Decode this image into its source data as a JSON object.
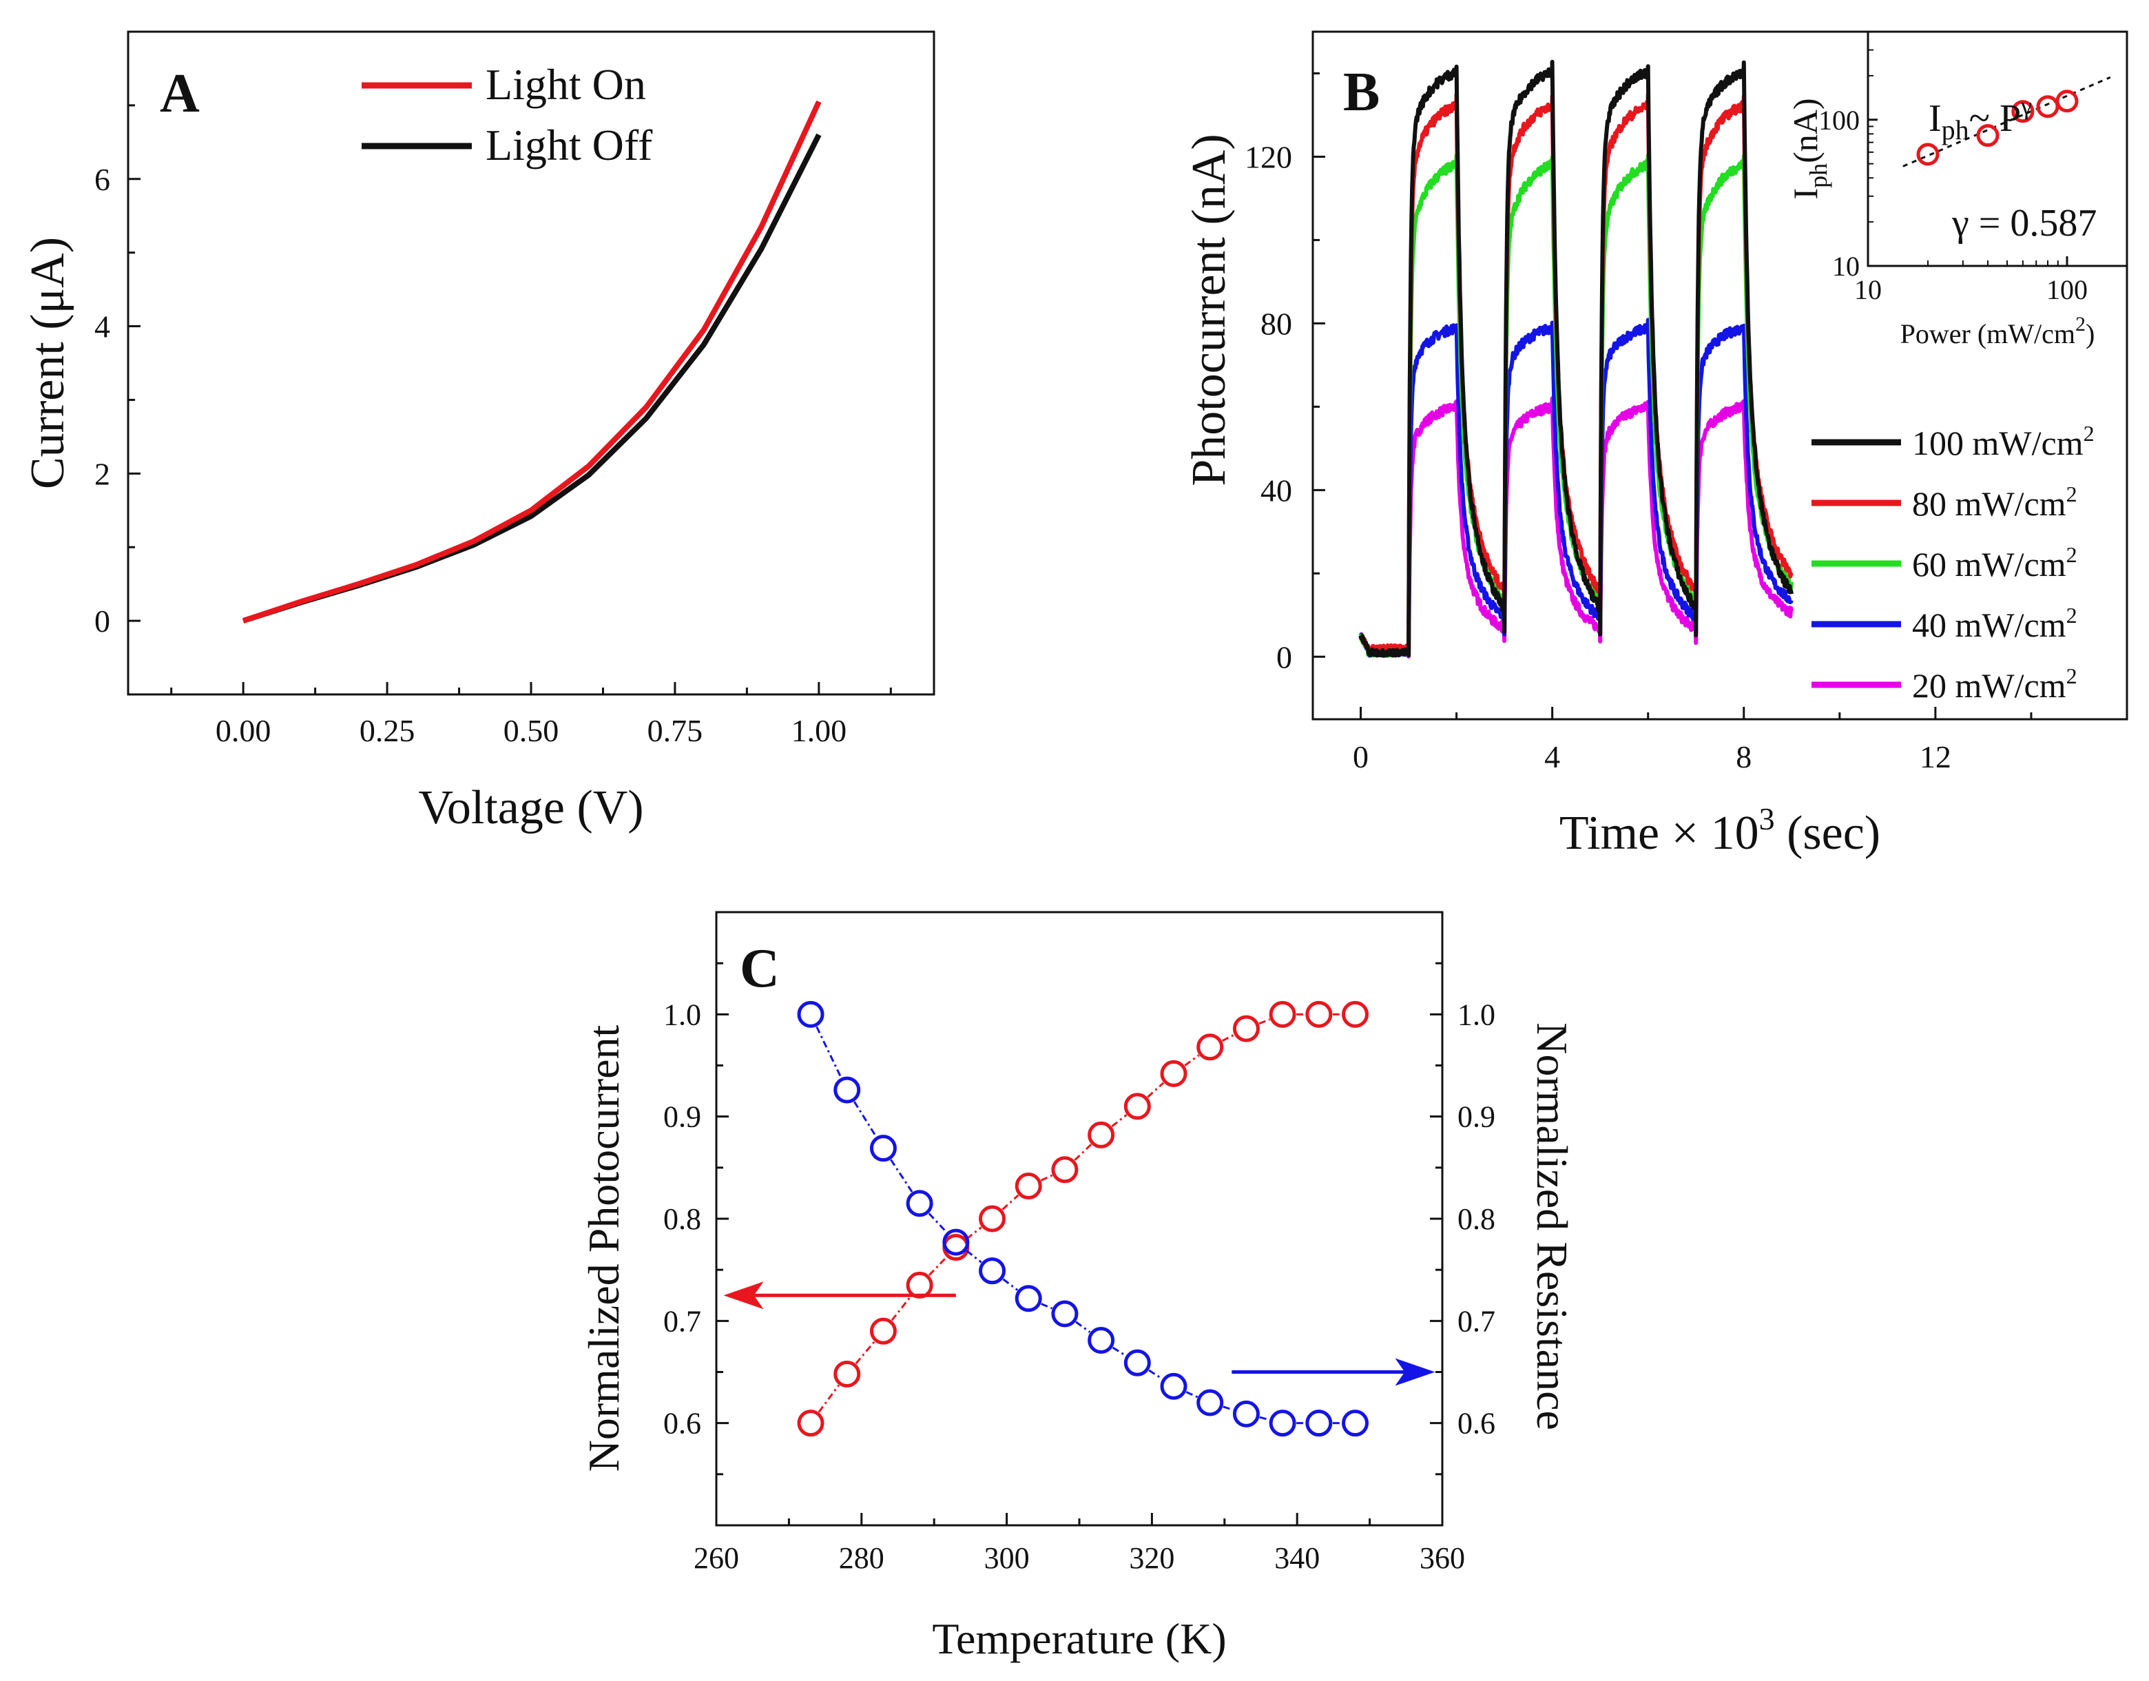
{
  "chart_data": [
    {
      "panel": "A",
      "type": "line",
      "xlabel": "Voltage (V)",
      "ylabel": "Current  (μA)",
      "xlim": [
        -0.2,
        1.2
      ],
      "ylim": [
        -1,
        8
      ],
      "xticks": [
        "0.00",
        "0.25",
        "0.50",
        "0.75",
        "1.00"
      ],
      "xtick_values": [
        0,
        0.25,
        0.5,
        0.75,
        1.0
      ],
      "yticks": [
        "0",
        "2",
        "4",
        "6"
      ],
      "ytick_values": [
        0,
        2,
        4,
        6
      ],
      "legend_position": "top-center",
      "series": [
        {
          "name": "Light On",
          "color": "#e8171e",
          "x": [
            0,
            0.1,
            0.2,
            0.3,
            0.4,
            0.5,
            0.6,
            0.7,
            0.8,
            0.9,
            1.0
          ],
          "y": [
            0,
            0.26,
            0.5,
            0.76,
            1.08,
            1.5,
            2.1,
            2.9,
            3.95,
            5.35,
            7.05
          ]
        },
        {
          "name": "Light Off",
          "color": "#111111",
          "x": [
            0,
            0.1,
            0.2,
            0.3,
            0.4,
            0.5,
            0.6,
            0.7,
            0.8,
            0.9,
            1.0
          ],
          "y": [
            0,
            0.25,
            0.48,
            0.73,
            1.03,
            1.42,
            1.98,
            2.75,
            3.75,
            5.05,
            6.6
          ]
        }
      ]
    },
    {
      "panel": "B",
      "type": "line",
      "xlabel_main": "Time × 10",
      "xlabel_sup": "3",
      "xlabel_unit": " (sec)",
      "ylabel": "Photocurrent (nA)",
      "xlim": [
        -1,
        16
      ],
      "ylim": [
        -15,
        150
      ],
      "xticks": [
        "0",
        "4",
        "8",
        "12"
      ],
      "xtick_values": [
        0,
        4,
        8,
        12
      ],
      "yticks": [
        "0",
        "40",
        "80",
        "120"
      ],
      "ytick_values": [
        0,
        40,
        80,
        120
      ],
      "pulse_on_times": [
        1,
        3,
        5,
        7
      ],
      "pulse_off_times": [
        2,
        4,
        6,
        8
      ],
      "end_time": 9,
      "legend_position": "center-right",
      "unit_text": "mW/cm",
      "unit_sup": "2",
      "series": [
        {
          "name": "100",
          "color": "#111111",
          "peak": 142,
          "knee": 124,
          "baseline": 5
        },
        {
          "name": "80",
          "color": "#e8171e",
          "peak": 134,
          "knee": 115,
          "baseline": 10
        },
        {
          "name": "60",
          "color": "#22dd22",
          "peak": 120,
          "knee": 100,
          "baseline": 8
        },
        {
          "name": "40",
          "color": "#1414e6",
          "peak": 80,
          "knee": 68,
          "baseline": 6
        },
        {
          "name": "20",
          "color": "#e600e6",
          "peak": 61,
          "knee": 50,
          "baseline": 4
        }
      ],
      "inset": {
        "type": "scatter",
        "xscale": "log",
        "yscale": "log",
        "xlabel": "Power (mW/cm",
        "xlabel_sup": "2",
        "xlabel_end": ")",
        "ylabel": "I",
        "ylabel_sub": "ph",
        "ylabel_unit": "(nA)",
        "xlim": [
          10,
          200
        ],
        "ylim": [
          10,
          400
        ],
        "xticks": [
          "10",
          "100"
        ],
        "xtick_values": [
          10,
          100
        ],
        "yticks": [
          "10",
          "100"
        ],
        "ytick_values": [
          10,
          100
        ],
        "formula_main": "I",
        "formula_sub": "ph",
        "formula_mid": "~ P",
        "formula_sup": "γ",
        "gamma_text": "γ = 0.587",
        "x": [
          20,
          40,
          60,
          80,
          100
        ],
        "y": [
          58,
          78,
          114,
          123,
          134
        ],
        "fit_x": [
          15,
          165
        ],
        "fit_y": [
          48,
          195
        ]
      }
    },
    {
      "panel": "C",
      "type": "scatter",
      "xlabel": "Temperature (K)",
      "ylabel_left": "Normalized Photocurrent",
      "ylabel_right": "Normalized Resistance",
      "xlim": [
        260,
        360
      ],
      "ylim": [
        0.5,
        1.1
      ],
      "xticks": [
        "260",
        "280",
        "300",
        "320",
        "340",
        "360"
      ],
      "xtick_values": [
        260,
        280,
        300,
        320,
        340,
        360
      ],
      "yticks": [
        "0.6",
        "0.7",
        "0.8",
        "0.9",
        "1.0"
      ],
      "ytick_values": [
        0.6,
        0.7,
        0.8,
        0.9,
        1.0
      ],
      "x": [
        273,
        278,
        283,
        288,
        293,
        298,
        303,
        308,
        313,
        318,
        323,
        328,
        333,
        338,
        343,
        348
      ],
      "series": [
        {
          "name": "Normalized Photocurrent",
          "axis": "left",
          "color": "#e8171e",
          "y": [
            0.6,
            0.648,
            0.69,
            0.735,
            0.772,
            0.8,
            0.832,
            0.848,
            0.882,
            0.91,
            0.942,
            0.968,
            0.986,
            1.0,
            1.0,
            1.0
          ]
        },
        {
          "name": "Normalized Resistance",
          "axis": "right",
          "color": "#1414e6",
          "y": [
            1.0,
            0.926,
            0.869,
            0.815,
            0.777,
            0.749,
            0.722,
            0.707,
            0.681,
            0.659,
            0.636,
            0.62,
            0.609,
            0.6,
            0.6,
            0.6
          ]
        }
      ],
      "arrows": [
        {
          "direction": "left",
          "color": "#e8171e",
          "x_from": 293,
          "x_to": 261,
          "y": 0.725
        },
        {
          "direction": "right",
          "color": "#1414e6",
          "x_from": 331,
          "x_to": 359,
          "y": 0.65
        }
      ]
    }
  ]
}
